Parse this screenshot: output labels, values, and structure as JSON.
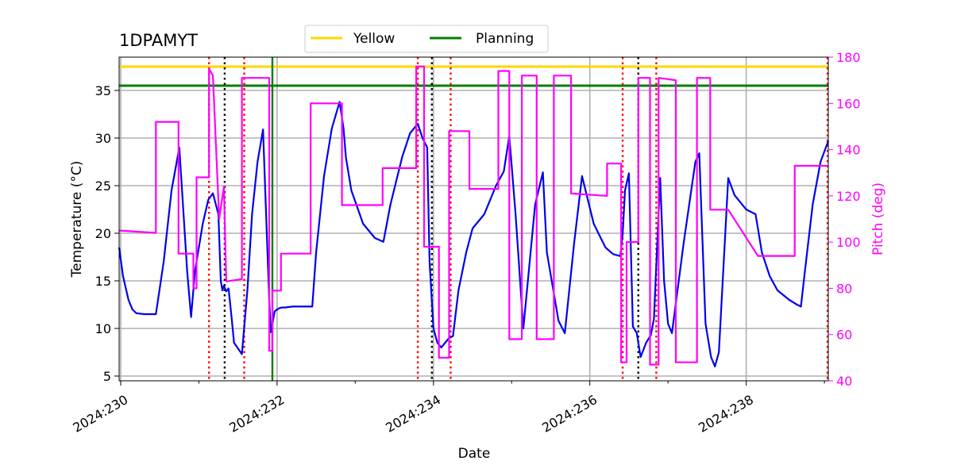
{
  "chart_data": {
    "type": "line",
    "title": "1DPAMYT",
    "xlabel": "Date",
    "ylabel": "Temperature ($^\\circ$C)",
    "ylabel_display": "Temperature (°C)",
    "y2label": "Pitch (deg)",
    "xlim": [
      229.98,
      239.05
    ],
    "ylim": [
      4.5,
      38.5
    ],
    "y2lim": [
      40,
      180
    ],
    "x_ticks": [
      230,
      232,
      234,
      236,
      238
    ],
    "x_tick_labels": [
      "2024:230",
      "2024:232",
      "2024:234",
      "2024:236",
      "2024:238"
    ],
    "y_ticks": [
      5,
      10,
      15,
      20,
      25,
      30,
      35
    ],
    "y2_ticks": [
      40,
      60,
      80,
      100,
      120,
      140,
      160,
      180
    ],
    "grid": true,
    "legend": {
      "placement": "top-center",
      "entries": [
        "Yellow",
        "Planning"
      ]
    },
    "colors": {
      "temperature": "#0000ee",
      "pitch": "#ff00ff",
      "yellow": "#ffd700",
      "planning": "#008000",
      "comm_window": "#ff0000",
      "event": "#000000",
      "grid": "#b0b0b0"
    },
    "hlines": [
      {
        "name": "Yellow",
        "y": 37.5
      },
      {
        "name": "Planning",
        "y": 35.5
      }
    ],
    "vlines": [
      {
        "kind": "planning",
        "x": 231.94
      },
      {
        "kind": "comm",
        "x": 231.13
      },
      {
        "kind": "comm",
        "x": 231.58
      },
      {
        "kind": "comm",
        "x": 233.8
      },
      {
        "kind": "comm",
        "x": 234.22
      },
      {
        "kind": "comm",
        "x": 236.42
      },
      {
        "kind": "comm",
        "x": 236.85
      },
      {
        "kind": "comm",
        "x": 239.05
      },
      {
        "kind": "event",
        "x": 231.33
      },
      {
        "kind": "event",
        "x": 233.98
      },
      {
        "kind": "event",
        "x": 236.62
      }
    ],
    "series": [
      {
        "name": "Temperature",
        "axis": "left",
        "x": [
          229.98,
          230.03,
          230.1,
          230.15,
          230.2,
          230.3,
          230.45,
          230.55,
          230.65,
          230.75,
          230.85,
          230.9,
          230.95,
          231.05,
          231.12,
          231.18,
          231.25,
          231.28,
          231.3,
          231.32,
          231.35,
          231.38,
          231.42,
          231.45,
          231.55,
          231.62,
          231.68,
          231.75,
          231.82,
          231.9,
          231.92,
          231.97,
          232.02,
          232.06,
          232.1,
          232.2,
          232.45,
          232.5,
          232.6,
          232.7,
          232.8,
          232.85,
          232.88,
          232.95,
          233.1,
          233.25,
          233.36,
          233.45,
          233.6,
          233.7,
          233.8,
          233.86,
          233.92,
          233.95,
          234.0,
          234.05,
          234.1,
          234.2,
          234.25,
          234.32,
          234.42,
          234.5,
          234.65,
          234.8,
          234.9,
          234.97,
          235.05,
          235.15,
          235.3,
          235.4,
          235.45,
          235.6,
          235.68,
          235.8,
          235.9,
          236.05,
          236.2,
          236.3,
          236.39,
          236.42,
          236.45,
          236.5,
          236.55,
          236.6,
          236.65,
          236.72,
          236.78,
          236.82,
          236.9,
          236.95,
          237.0,
          237.05,
          237.2,
          237.35,
          237.4,
          237.48,
          237.55,
          237.6,
          237.65,
          237.77,
          237.85,
          238.0,
          238.12,
          238.2,
          238.3,
          238.4,
          238.55,
          238.65,
          238.7,
          238.75,
          238.85,
          238.95,
          239.05
        ],
        "values": [
          18.5,
          15.5,
          13.0,
          12.0,
          11.6,
          11.5,
          11.5,
          17.0,
          24.5,
          29.0,
          16.0,
          11.2,
          16.0,
          21.0,
          23.5,
          24.2,
          22.0,
          15.0,
          14.0,
          14.5,
          13.9,
          14.2,
          11.0,
          8.5,
          7.3,
          14.0,
          22.0,
          27.5,
          30.9,
          13.0,
          9.6,
          11.8,
          12.1,
          12.2,
          12.2,
          12.3,
          12.3,
          18.0,
          26.0,
          31.0,
          33.8,
          31.0,
          28.0,
          24.5,
          21.0,
          19.5,
          19.1,
          23.0,
          28.0,
          30.5,
          31.5,
          30.0,
          29.0,
          17.0,
          10.0,
          8.5,
          8.0,
          9.0,
          9.2,
          14.0,
          18.0,
          20.5,
          22.0,
          25.0,
          26.5,
          30.2,
          22.0,
          10.0,
          23.0,
          26.4,
          18.0,
          10.8,
          9.5,
          19.0,
          26.0,
          21.0,
          18.5,
          17.8,
          17.6,
          20.0,
          24.5,
          26.3,
          10.2,
          9.5,
          7.0,
          8.5,
          9.3,
          11.0,
          25.8,
          15.0,
          10.5,
          9.5,
          19.0,
          27.5,
          28.4,
          10.5,
          7.0,
          6.0,
          7.5,
          25.8,
          24.0,
          22.5,
          22.0,
          18.0,
          15.5,
          14.0,
          13.0,
          12.5,
          12.3,
          16.0,
          23.0,
          27.5,
          29.7
        ]
      },
      {
        "name": "Pitch",
        "axis": "right",
        "x": [
          229.98,
          230.45,
          230.45,
          230.74,
          230.74,
          230.93,
          230.93,
          230.97,
          230.97,
          231.13,
          231.13,
          231.18,
          231.18,
          231.26,
          231.26,
          231.32,
          231.32,
          231.35,
          231.35,
          231.55,
          231.55,
          231.9,
          231.9,
          231.94,
          231.94,
          232.05,
          232.05,
          232.43,
          232.43,
          232.83,
          232.83,
          233.35,
          233.35,
          233.78,
          233.78,
          233.88,
          233.88,
          234.07,
          234.07,
          234.2,
          234.2,
          234.46,
          234.46,
          234.83,
          234.83,
          234.97,
          234.97,
          235.13,
          235.13,
          235.32,
          235.32,
          235.54,
          235.54,
          235.76,
          235.76,
          236.22,
          236.22,
          236.4,
          236.4,
          236.47,
          236.47,
          236.62,
          236.62,
          236.77,
          236.77,
          236.88,
          236.88,
          237.1,
          237.1,
          237.37,
          237.37,
          237.54,
          237.54,
          237.77,
          237.77,
          238.15,
          238.15,
          238.62,
          238.62,
          239.05
        ],
        "values": [
          105,
          104,
          152,
          152,
          95,
          95,
          80,
          80,
          128,
          128,
          175,
          172,
          172,
          110,
          110,
          124,
          124,
          83,
          83,
          84,
          171,
          171,
          53,
          53,
          79,
          79,
          95,
          95,
          160,
          160,
          116,
          116,
          132,
          132,
          176,
          176,
          98,
          98,
          50,
          50,
          148,
          148,
          123,
          123,
          174,
          174,
          58,
          58,
          172,
          172,
          58,
          58,
          172,
          172,
          121,
          120,
          134,
          134,
          48,
          48,
          100,
          100,
          171,
          171,
          47,
          47,
          171,
          170,
          48,
          48,
          171,
          171,
          114,
          114,
          114,
          94,
          94,
          94,
          133,
          133
        ]
      }
    ]
  }
}
